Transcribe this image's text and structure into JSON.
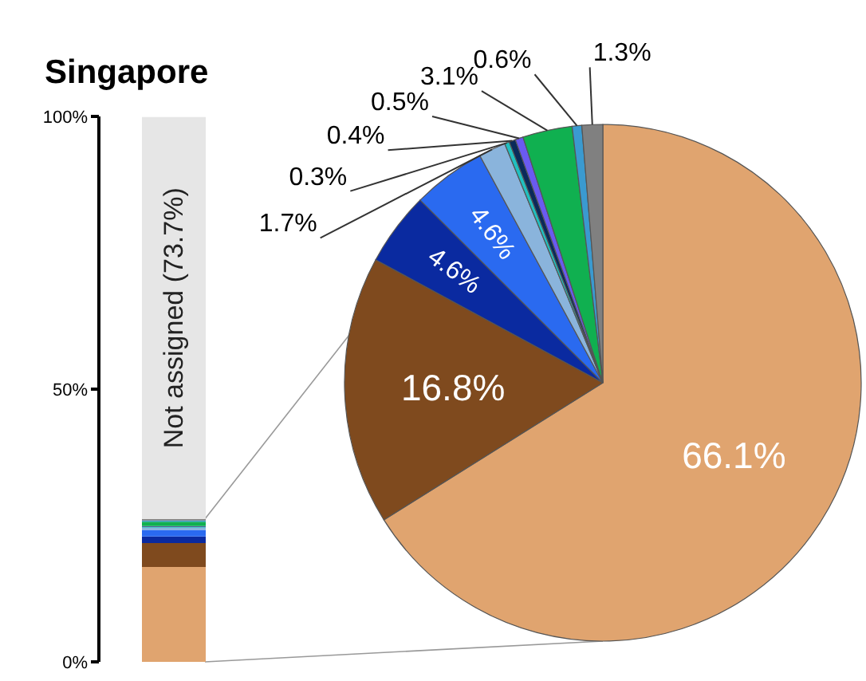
{
  "chart_data": [
    {
      "type": "bar",
      "title": "Singapore",
      "stacked": true,
      "categories": [
        null
      ],
      "ylim": [
        0,
        100
      ],
      "yticks": [
        {
          "value": 0,
          "label": "0%"
        },
        {
          "value": 50,
          "label": "50%"
        },
        {
          "value": 100,
          "label": "100%"
        }
      ],
      "series": [
        {
          "color": "#e0a46f",
          "values": [
            17.4
          ]
        },
        {
          "color": "#7f4a1e",
          "values": [
            4.4
          ]
        },
        {
          "color": "#0a2aa0",
          "values": [
            1.2
          ]
        },
        {
          "color": "#2a6af0",
          "values": [
            1.2
          ]
        },
        {
          "color": "#8ab4dc",
          "values": [
            0.4
          ]
        },
        {
          "color": "#20c0c0",
          "values": [
            0.1
          ]
        },
        {
          "color": "#0a2a5a",
          "values": [
            0.1
          ]
        },
        {
          "color": "#6a5af0",
          "values": [
            0.1
          ]
        },
        {
          "color": "#10b050",
          "values": [
            0.8
          ]
        },
        {
          "color": "#3a9ad0",
          "values": [
            0.2
          ]
        },
        {
          "color": "#808080",
          "values": [
            0.3
          ]
        },
        {
          "color": "#e6e6e6",
          "values": [
            73.7
          ],
          "value_labels": [
            "Not assigned (73.7%)"
          ]
        }
      ]
    },
    {
      "type": "pie",
      "categories": [
        null,
        null,
        null,
        null,
        null,
        null,
        null,
        null,
        null,
        null,
        null
      ],
      "values": [
        66.1,
        16.8,
        4.6,
        4.6,
        1.7,
        0.3,
        0.4,
        0.5,
        3.1,
        0.6,
        1.3
      ],
      "colors": [
        "#e0a46f",
        "#7f4a1e",
        "#0a2aa0",
        "#2a6af0",
        "#8ab4dc",
        "#20c0c0",
        "#0a2a5a",
        "#6a5af0",
        "#10b050",
        "#3a9ad0",
        "#808080"
      ],
      "value_labels": [
        "66.1%",
        "16.8%",
        "4.6%",
        "4.6%",
        "1.7%",
        "0.3%",
        "0.4%",
        "0.5%",
        "3.1%",
        "0.6%",
        "1.3%"
      ]
    }
  ]
}
